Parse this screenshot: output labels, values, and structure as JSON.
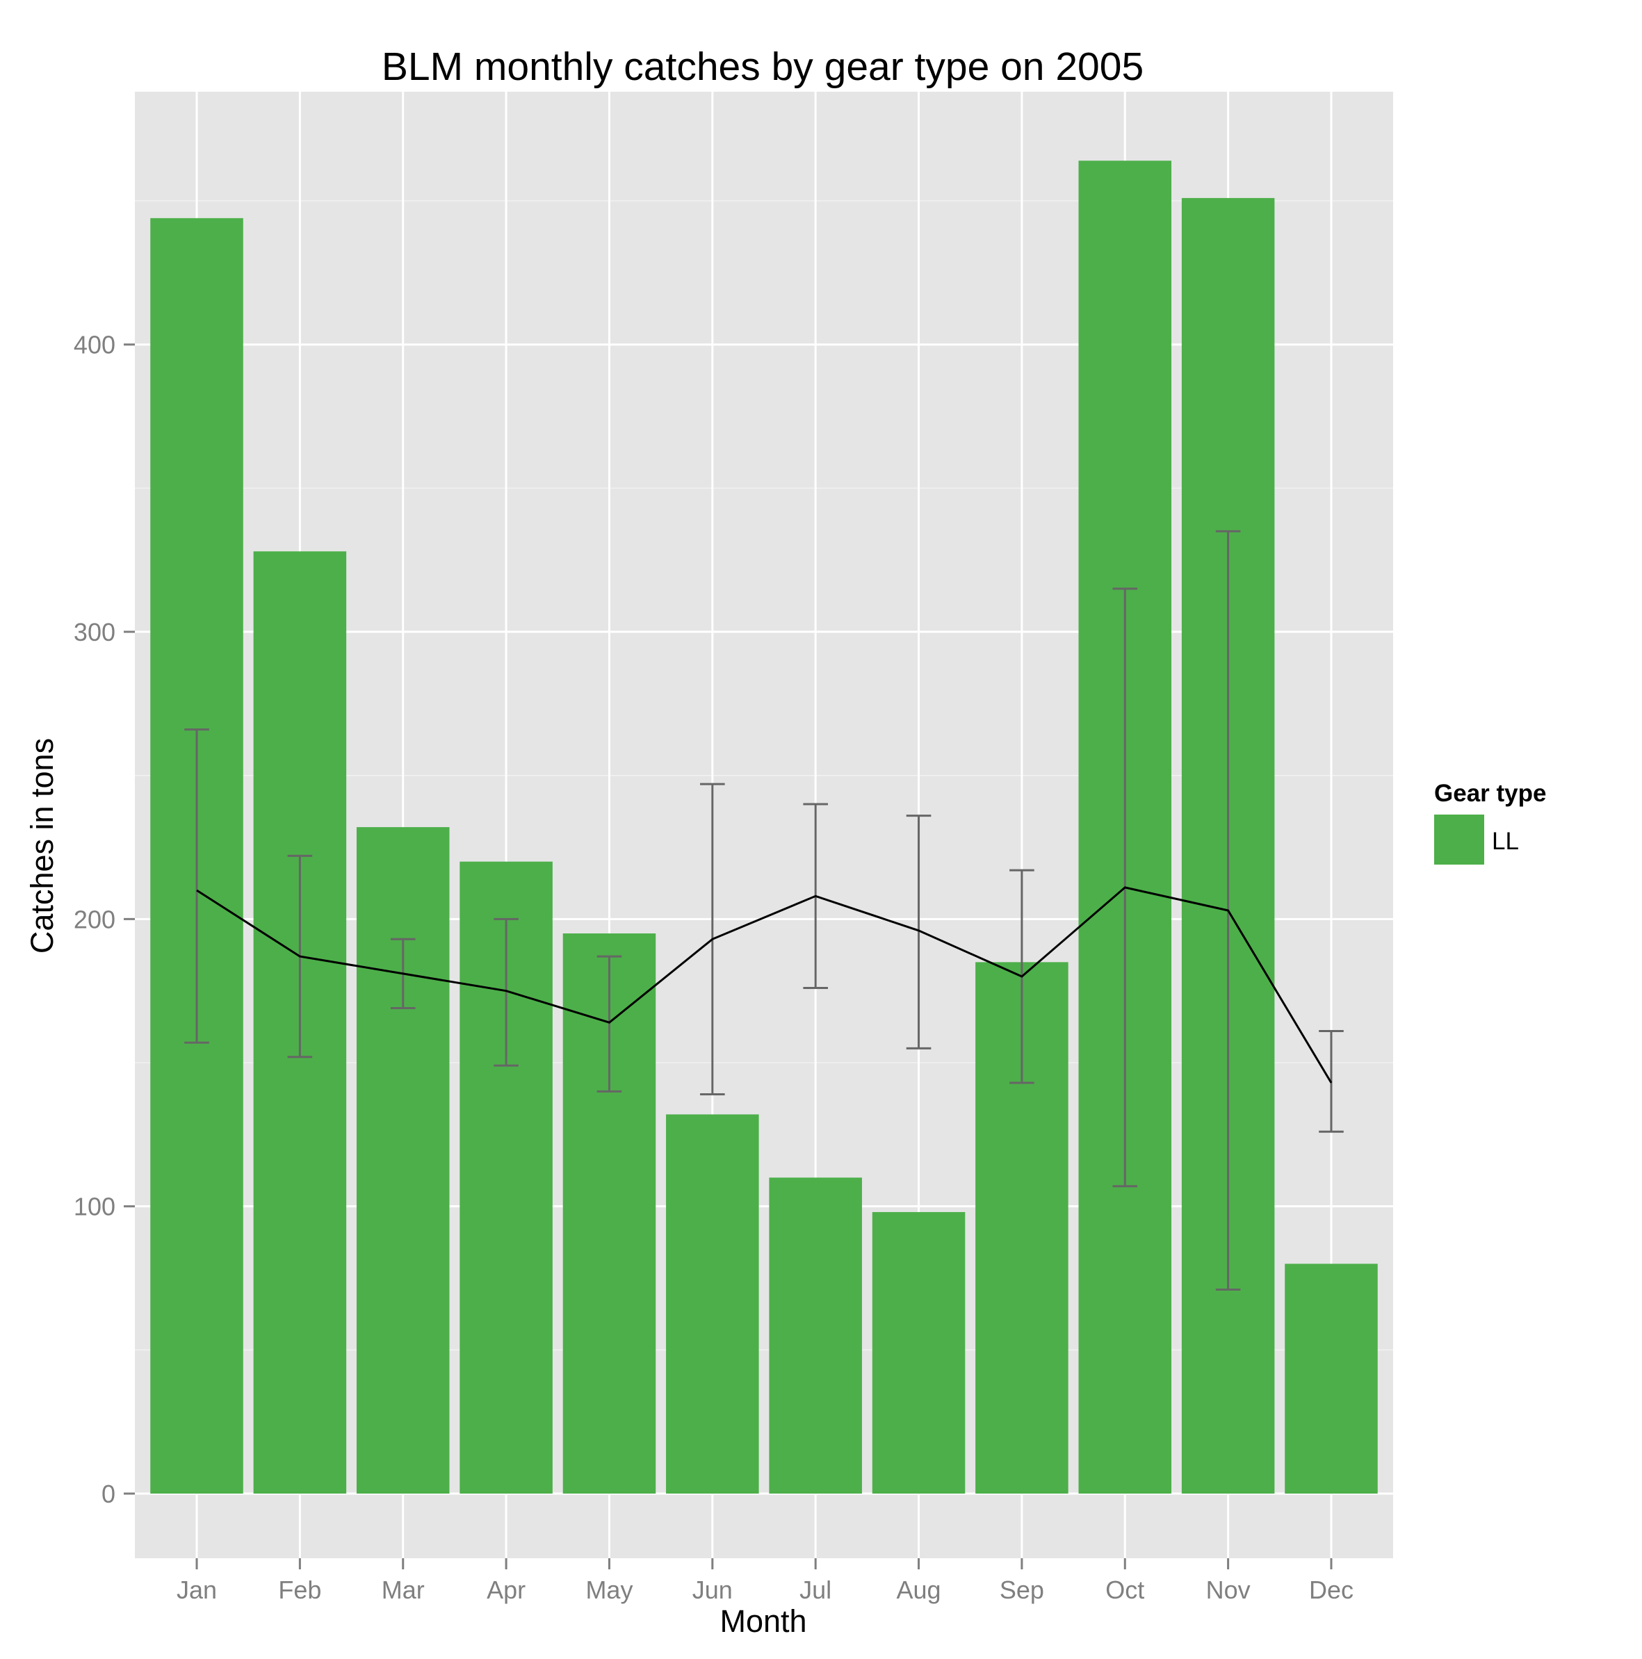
{
  "chart_data": {
    "type": "bar",
    "title": "BLM monthly catches by gear type on 2005",
    "xlabel": "Month",
    "ylabel": "Catches in tons",
    "categories": [
      "Jan",
      "Feb",
      "Mar",
      "Apr",
      "May",
      "Jun",
      "Jul",
      "Aug",
      "Sep",
      "Oct",
      "Nov",
      "Dec"
    ],
    "yticks": [
      0,
      100,
      200,
      300,
      400
    ],
    "ylim": [
      -22.5,
      488
    ],
    "grid": true,
    "legend": {
      "title": "Gear type",
      "position": "right"
    },
    "series": [
      {
        "name": "LL",
        "type": "bar",
        "color": "#4daf4a",
        "values": [
          444,
          328,
          232,
          220,
          195,
          132,
          110,
          98,
          185,
          464,
          451,
          80
        ]
      }
    ],
    "overlay": {
      "type": "line",
      "color": "#000000",
      "values": [
        210,
        187,
        181,
        175,
        164,
        193,
        208,
        196,
        180,
        211,
        203,
        143
      ],
      "error_color": "#666666",
      "error_low": [
        157,
        152,
        169,
        149,
        140,
        139,
        176,
        155,
        143,
        107,
        71,
        126
      ],
      "error_high": [
        266,
        222,
        193,
        200,
        187,
        247,
        240,
        236,
        217,
        315,
        335,
        161
      ]
    }
  }
}
